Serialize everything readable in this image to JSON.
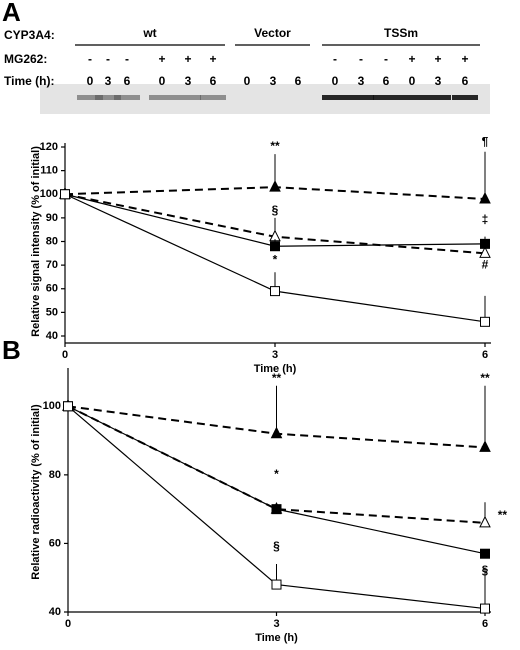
{
  "gel": {
    "row_labels": [
      "CYP3A4:",
      "MG262:",
      "Time (h):"
    ],
    "groups": [
      {
        "name": "wt",
        "mg262": [
          "-",
          "-",
          "-",
          "+",
          "+",
          "+"
        ],
        "time": [
          "0",
          "3",
          "6",
          "0",
          "3",
          "6"
        ]
      },
      {
        "name": "Vector",
        "mg262": [],
        "time": [
          "0",
          "3",
          "6"
        ]
      },
      {
        "name": "TSSm",
        "mg262": [
          "-",
          "-",
          "-",
          "+",
          "+",
          "+"
        ],
        "time": [
          "0",
          "3",
          "6",
          "0",
          "3",
          "6"
        ]
      }
    ]
  },
  "chart_data": [
    {
      "type": "line",
      "panel": "A",
      "x_label": "Time (h)",
      "y_label": "Relative signal intensity (% of initial)",
      "x": [
        0,
        3,
        6
      ],
      "xlim": [
        0,
        6
      ],
      "xticks": [
        0,
        3,
        6
      ],
      "ylim": [
        40,
        120
      ],
      "yticks": [
        40,
        50,
        60,
        70,
        80,
        90,
        100,
        110,
        120
      ],
      "series": [
        {
          "marker": "filled-triangle",
          "dash": true,
          "color": "#000000",
          "values": [
            100,
            103,
            98
          ],
          "errors": [
            null,
            14,
            20
          ]
        },
        {
          "marker": "open-triangle",
          "dash": true,
          "color": "#000000",
          "values": [
            100,
            82,
            75
          ],
          "errors": [
            null,
            8,
            7
          ]
        },
        {
          "marker": "filled-square",
          "dash": false,
          "color": "#000000",
          "values": [
            100,
            78,
            79
          ],
          "errors": [
            null,
            3,
            3
          ]
        },
        {
          "marker": "open-square",
          "dash": false,
          "color": "#000000",
          "values": [
            100,
            59,
            46
          ],
          "errors": [
            null,
            8,
            11
          ]
        }
      ],
      "annotations": [
        {
          "text": "**",
          "x": 3,
          "y": 120
        },
        {
          "text": "§",
          "x": 3,
          "y": 93
        },
        {
          "text": "*",
          "x": 3,
          "y": 72
        },
        {
          "text": "¶",
          "x": 6,
          "y": 122
        },
        {
          "text": "‡",
          "x": 6,
          "y": 89
        },
        {
          "text": "#",
          "x": 6,
          "y": 70
        }
      ]
    },
    {
      "type": "line",
      "panel": "B",
      "x_label": "Time (h)",
      "y_label": "Relative radioactivity (% of initial)",
      "x": [
        0,
        3,
        6
      ],
      "xlim": [
        0,
        6
      ],
      "xticks": [
        0,
        3,
        6
      ],
      "ylim": [
        40,
        110
      ],
      "yticks": [
        40,
        60,
        80,
        100
      ],
      "series": [
        {
          "marker": "filled-triangle",
          "dash": true,
          "color": "#000000",
          "values": [
            100,
            92,
            88
          ],
          "errors": [
            null,
            14,
            18
          ]
        },
        {
          "marker": "open-triangle",
          "dash": true,
          "color": "#000000",
          "values": [
            100,
            70,
            66
          ],
          "errors": [
            null,
            null,
            6
          ]
        },
        {
          "marker": "filled-square",
          "dash": false,
          "color": "#000000",
          "values": [
            100,
            70,
            57
          ],
          "errors": [
            null,
            null,
            null
          ]
        },
        {
          "marker": "open-square",
          "dash": false,
          "color": "#000000",
          "values": [
            100,
            48,
            41
          ],
          "errors": [
            null,
            6,
            12
          ]
        }
      ],
      "annotations": [
        {
          "text": "**",
          "x": 3,
          "y": 108
        },
        {
          "text": "*",
          "x": 3,
          "y": 80
        },
        {
          "text": "§",
          "x": 3,
          "y": 59
        },
        {
          "text": "**",
          "x": 6,
          "y": 108
        },
        {
          "text": "**",
          "x": 6.25,
          "y": 68
        },
        {
          "text": "§",
          "x": 6,
          "y": 52
        }
      ]
    }
  ]
}
